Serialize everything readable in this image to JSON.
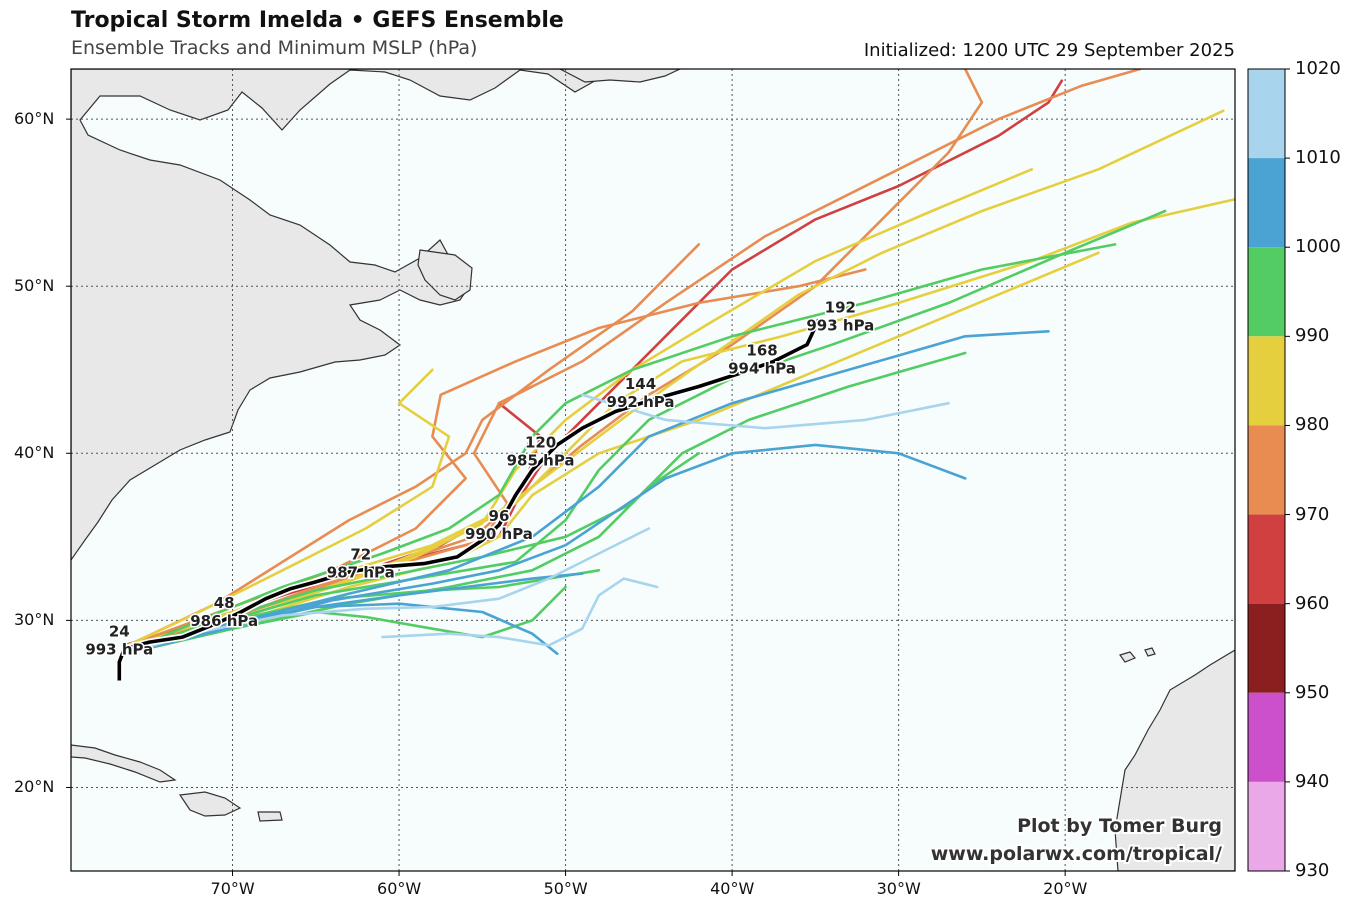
{
  "header": {
    "title": "Tropical Storm Imelda • GEFS Ensemble",
    "subtitle": "Ensemble Tracks and Minimum MSLP (hPa)",
    "initialized": "Initialized: 1200 UTC 29 September 2025"
  },
  "map": {
    "lon_range": [
      -79.7,
      -9.8
    ],
    "lat_range": [
      15.0,
      63.0
    ],
    "lon_ticks": [
      {
        "lon": -70,
        "label": "70°W"
      },
      {
        "lon": -60,
        "label": "60°W"
      },
      {
        "lon": -50,
        "label": "50°W"
      },
      {
        "lon": -40,
        "label": "40°W"
      },
      {
        "lon": -30,
        "label": "30°W"
      },
      {
        "lon": -20,
        "label": "20°W"
      }
    ],
    "lat_ticks": [
      {
        "lat": 60,
        "label": "60°N"
      },
      {
        "lat": 50,
        "label": "50°N"
      },
      {
        "lat": 40,
        "label": "40°N"
      },
      {
        "lat": 30,
        "label": "30°N"
      },
      {
        "lat": 20,
        "label": "20°N"
      }
    ],
    "gridlines": true,
    "ocean_color": "#f7fdfd",
    "land_color": "#e8e8e8"
  },
  "colorbar": {
    "levels": [
      "1020",
      "1010",
      "1000",
      "990",
      "980",
      "970",
      "960",
      "950",
      "940",
      "930"
    ],
    "colors": [
      "#a8d4ee",
      "#4aa3d2",
      "#53cc63",
      "#e6cf3e",
      "#e88c52",
      "#d04040",
      "#8b1e1e",
      "#cc4fcc",
      "#eaa8e8"
    ]
  },
  "mean_track": {
    "points": [
      [
        -76.8,
        26.4
      ],
      [
        -76.8,
        27.5
      ],
      [
        -76.5,
        28.3
      ],
      [
        -75.0,
        28.7
      ],
      [
        -73.0,
        29.0
      ],
      [
        -71.0,
        29.8
      ],
      [
        -69.5,
        30.5
      ],
      [
        -68.0,
        31.3
      ],
      [
        -66.5,
        31.9
      ],
      [
        -65.0,
        32.3
      ],
      [
        -63.0,
        32.9
      ],
      [
        -61.0,
        33.2
      ],
      [
        -58.5,
        33.4
      ],
      [
        -56.5,
        33.8
      ],
      [
        -55.0,
        34.8
      ],
      [
        -54.0,
        35.7
      ],
      [
        -53.0,
        37.5
      ],
      [
        -52.0,
        39.0
      ],
      [
        -50.5,
        40.5
      ],
      [
        -49.0,
        41.5
      ],
      [
        -47.0,
        42.5
      ],
      [
        -44.5,
        43.3
      ],
      [
        -42.0,
        44.0
      ],
      [
        -39.5,
        44.8
      ],
      [
        -37.5,
        45.5
      ],
      [
        -35.5,
        46.5
      ],
      [
        -34.8,
        48.0
      ]
    ],
    "labels": [
      {
        "lon": -76.8,
        "lat": 28.8,
        "hour": "24",
        "mslp": "993 hPa"
      },
      {
        "lon": -70.5,
        "lat": 30.5,
        "hour": "48",
        "mslp": "986 hPa"
      },
      {
        "lon": -62.3,
        "lat": 33.4,
        "hour": "72",
        "mslp": "987 hPa"
      },
      {
        "lon": -54.0,
        "lat": 35.7,
        "hour": "96",
        "mslp": "990 hPa"
      },
      {
        "lon": -51.5,
        "lat": 40.1,
        "hour": "120",
        "mslp": "985 hPa"
      },
      {
        "lon": -45.5,
        "lat": 43.6,
        "hour": "144",
        "mslp": "992 hPa"
      },
      {
        "lon": -38.2,
        "lat": 45.6,
        "hour": "168",
        "mslp": "994 hPa"
      },
      {
        "lon": -33.5,
        "lat": 48.2,
        "hour": "192",
        "mslp": "993 hPa"
      }
    ]
  },
  "ensemble_tracks": [
    {
      "color": "#d04040",
      "points": [
        [
          -76.5,
          28.5
        ],
        [
          -72,
          29.8
        ],
        [
          -67,
          31.5
        ],
        [
          -62,
          33
        ],
        [
          -57.5,
          34.5
        ],
        [
          -53,
          37
        ],
        [
          -51,
          40
        ],
        [
          -48,
          43
        ],
        [
          -44,
          47
        ],
        [
          -40,
          51
        ],
        [
          -35,
          54
        ],
        [
          -30,
          56
        ],
        [
          -24,
          59
        ],
        [
          -21,
          61
        ],
        [
          -20.2,
          62.3
        ]
      ]
    },
    {
      "color": "#d04040",
      "points": [
        [
          -76.5,
          28.5
        ],
        [
          -70,
          30.5
        ],
        [
          -64,
          32.5
        ],
        [
          -58,
          34
        ],
        [
          -54,
          35
        ],
        [
          -52.5,
          38
        ],
        [
          -51.5,
          41
        ],
        [
          -54,
          43
        ],
        [
          -52,
          44
        ]
      ]
    },
    {
      "color": "#e88c52",
      "points": [
        [
          -76.5,
          28.3
        ],
        [
          -70,
          30.2
        ],
        [
          -62,
          32.8
        ],
        [
          -55,
          34.8
        ],
        [
          -53.5,
          37
        ],
        [
          -55.5,
          40
        ],
        [
          -54,
          43
        ],
        [
          -49,
          45.5
        ],
        [
          -44,
          49
        ],
        [
          -38,
          53
        ],
        [
          -30,
          57
        ],
        [
          -24,
          60
        ],
        [
          -19,
          62
        ],
        [
          -15.5,
          63
        ]
      ]
    },
    {
      "color": "#e88c52",
      "points": [
        [
          -76.5,
          28.3
        ],
        [
          -71,
          29.8
        ],
        [
          -65,
          32
        ],
        [
          -60,
          33.5
        ],
        [
          -55.5,
          35
        ],
        [
          -52,
          38
        ],
        [
          -49,
          40.5
        ],
        [
          -45,
          43.5
        ],
        [
          -40,
          46.5
        ],
        [
          -35,
          50
        ],
        [
          -31,
          54
        ],
        [
          -27,
          58
        ],
        [
          -25,
          61
        ],
        [
          -26,
          63
        ]
      ]
    },
    {
      "color": "#e88c52",
      "points": [
        [
          -76.5,
          28.4
        ],
        [
          -70,
          30.8
        ],
        [
          -64,
          33
        ],
        [
          -59,
          35.5
        ],
        [
          -56,
          38.5
        ],
        [
          -58,
          41
        ],
        [
          -57.5,
          43.5
        ],
        [
          -53,
          45.5
        ],
        [
          -48,
          47.5
        ],
        [
          -42,
          49
        ],
        [
          -36,
          50
        ],
        [
          -32,
          51
        ]
      ]
    },
    {
      "color": "#e88c52",
      "points": [
        [
          -76.5,
          28.4
        ],
        [
          -71,
          31
        ],
        [
          -67,
          33.5
        ],
        [
          -63,
          36
        ],
        [
          -59,
          38
        ],
        [
          -56,
          40
        ],
        [
          -55,
          42
        ],
        [
          -51,
          45
        ],
        [
          -46,
          48.5
        ],
        [
          -42,
          52.5
        ]
      ]
    },
    {
      "color": "#e6cf3e",
      "points": [
        [
          -76.5,
          28.3
        ],
        [
          -70,
          30.5
        ],
        [
          -64,
          32.7
        ],
        [
          -58,
          34.5
        ],
        [
          -54,
          36.5
        ],
        [
          -50,
          39.5
        ],
        [
          -46,
          42.5
        ],
        [
          -41,
          46
        ],
        [
          -36,
          49.5
        ],
        [
          -31,
          52
        ],
        [
          -25,
          54.5
        ],
        [
          -18,
          57
        ],
        [
          -10.5,
          60.5
        ]
      ]
    },
    {
      "color": "#e6cf3e",
      "points": [
        [
          -76.5,
          28.2
        ],
        [
          -69,
          30.3
        ],
        [
          -62,
          32.8
        ],
        [
          -57,
          34.8
        ],
        [
          -53,
          37
        ],
        [
          -50,
          40
        ],
        [
          -47,
          43
        ],
        [
          -43,
          45.5
        ],
        [
          -37,
          47
        ],
        [
          -30,
          49
        ],
        [
          -22,
          51.5
        ],
        [
          -16,
          53.8
        ],
        [
          -9.8,
          55.2
        ]
      ]
    },
    {
      "color": "#e6cf3e",
      "points": [
        [
          -76.5,
          28.3
        ],
        [
          -70,
          30
        ],
        [
          -64,
          32
        ],
        [
          -59,
          33.8
        ],
        [
          -55,
          35.8
        ],
        [
          -53,
          39
        ],
        [
          -50,
          42
        ],
        [
          -46,
          45
        ],
        [
          -41,
          48
        ],
        [
          -35,
          51.5
        ],
        [
          -28,
          54.5
        ],
        [
          -22,
          57
        ]
      ]
    },
    {
      "color": "#e6cf3e",
      "points": [
        [
          -76.5,
          28.2
        ],
        [
          -70,
          29.8
        ],
        [
          -63,
          32
        ],
        [
          -57,
          33.5
        ],
        [
          -54,
          35
        ],
        [
          -52,
          37.5
        ],
        [
          -48,
          40
        ],
        [
          -42,
          42
        ],
        [
          -36,
          44.5
        ],
        [
          -30,
          47
        ],
        [
          -24,
          49.5
        ],
        [
          -18,
          52
        ]
      ]
    },
    {
      "color": "#e6cf3e",
      "points": [
        [
          -76.5,
          28.4
        ],
        [
          -72,
          30.5
        ],
        [
          -67,
          33
        ],
        [
          -62,
          35.5
        ],
        [
          -58,
          38
        ],
        [
          -57,
          41
        ],
        [
          -60,
          43
        ],
        [
          -58,
          45
        ]
      ]
    },
    {
      "color": "#53cc63",
      "points": [
        [
          -76.5,
          28.0
        ],
        [
          -71,
          29.8
        ],
        [
          -65,
          31.5
        ],
        [
          -59,
          32.5
        ],
        [
          -53,
          33.5
        ],
        [
          -50,
          36
        ],
        [
          -48,
          39
        ],
        [
          -45,
          42
        ],
        [
          -40,
          44.5
        ],
        [
          -34,
          46.5
        ],
        [
          -27,
          49
        ],
        [
          -20,
          52
        ],
        [
          -14,
          54.5
        ]
      ]
    },
    {
      "color": "#53cc63",
      "points": [
        [
          -76.5,
          28.0
        ],
        [
          -70,
          29.5
        ],
        [
          -63,
          31
        ],
        [
          -57,
          32
        ],
        [
          -52,
          33
        ],
        [
          -48,
          35
        ],
        [
          -45,
          38
        ],
        [
          -42,
          40
        ]
      ]
    },
    {
      "color": "#53cc63",
      "points": [
        [
          -76.5,
          28.0
        ],
        [
          -71,
          30
        ],
        [
          -65,
          31.8
        ],
        [
          -60,
          32.8
        ],
        [
          -55,
          33.8
        ],
        [
          -50,
          35
        ],
        [
          -46,
          37
        ],
        [
          -43,
          40
        ],
        [
          -39,
          42
        ],
        [
          -33,
          44
        ],
        [
          -26,
          46
        ]
      ]
    },
    {
      "color": "#53cc63",
      "points": [
        [
          -76.5,
          28.0
        ],
        [
          -70,
          30
        ],
        [
          -64,
          31.3
        ],
        [
          -58,
          31.8
        ],
        [
          -54,
          32
        ],
        [
          -51,
          32.5
        ],
        [
          -48,
          33
        ]
      ]
    },
    {
      "color": "#53cc63",
      "points": [
        [
          -76.5,
          28.0
        ],
        [
          -70,
          29.5
        ],
        [
          -65,
          30.5
        ],
        [
          -62,
          30.2
        ],
        [
          -58,
          29.5
        ],
        [
          -55,
          29
        ],
        [
          -52,
          30
        ],
        [
          -50,
          32
        ]
      ]
    },
    {
      "color": "#53cc63",
      "points": [
        [
          -76.5,
          28.0
        ],
        [
          -72,
          30
        ],
        [
          -67,
          32
        ],
        [
          -61,
          34
        ],
        [
          -57,
          35.5
        ],
        [
          -54,
          37.5
        ],
        [
          -52,
          41
        ],
        [
          -50,
          43
        ],
        [
          -46,
          45
        ],
        [
          -40,
          47
        ],
        [
          -32,
          49
        ],
        [
          -25,
          51
        ],
        [
          -17,
          52.5
        ]
      ]
    },
    {
      "color": "#4aa3d2",
      "points": [
        [
          -76.5,
          28.0
        ],
        [
          -70,
          29.6
        ],
        [
          -64,
          31.2
        ],
        [
          -58,
          32.2
        ],
        [
          -54,
          33
        ],
        [
          -50,
          34.5
        ],
        [
          -47,
          36.5
        ],
        [
          -44,
          38.5
        ],
        [
          -40,
          40
        ],
        [
          -35,
          40.5
        ],
        [
          -30,
          40
        ],
        [
          -26,
          38.5
        ]
      ]
    },
    {
      "color": "#4aa3d2",
      "points": [
        [
          -76.5,
          28.0
        ],
        [
          -71,
          29.5
        ],
        [
          -65,
          30.8
        ],
        [
          -60,
          31.5
        ],
        [
          -56,
          32
        ],
        [
          -52,
          32.5
        ],
        [
          -49,
          32.8
        ]
      ]
    },
    {
      "color": "#4aa3d2",
      "points": [
        [
          -76.5,
          28.0
        ],
        [
          -70,
          29.8
        ],
        [
          -63,
          31.6
        ],
        [
          -57,
          33
        ],
        [
          -52,
          35
        ],
        [
          -48,
          38
        ],
        [
          -45,
          41
        ],
        [
          -40,
          43
        ],
        [
          -33,
          45
        ],
        [
          -26,
          47
        ],
        [
          -21,
          47.3
        ]
      ]
    },
    {
      "color": "#4aa3d2",
      "points": [
        [
          -76.5,
          28.0
        ],
        [
          -71,
          29.7
        ],
        [
          -65,
          30.8
        ],
        [
          -60,
          31
        ],
        [
          -55,
          30.5
        ],
        [
          -52,
          29.2
        ],
        [
          -50.5,
          28
        ]
      ]
    },
    {
      "color": "#a8d4ee",
      "points": [
        [
          -76.5,
          28.0
        ],
        [
          -72,
          29.3
        ],
        [
          -67,
          30.3
        ],
        [
          -62,
          30.7
        ],
        [
          -58,
          30.8
        ],
        [
          -54,
          31.3
        ],
        [
          -51,
          32.5
        ],
        [
          -48,
          34
        ],
        [
          -45,
          35.5
        ]
      ]
    },
    {
      "color": "#a8d4ee",
      "points": [
        [
          -61,
          29
        ],
        [
          -57,
          29.2
        ],
        [
          -54,
          29
        ],
        [
          -51,
          28.5
        ],
        [
          -49,
          29.5
        ],
        [
          -48,
          31.5
        ],
        [
          -46.5,
          32.5
        ],
        [
          -44.5,
          32
        ]
      ]
    },
    {
      "color": "#a8d4ee",
      "points": [
        [
          -49,
          43.5
        ],
        [
          -44,
          42
        ],
        [
          -38,
          41.5
        ],
        [
          -32,
          42
        ],
        [
          -27,
          43
        ]
      ]
    }
  ],
  "credit": {
    "line1": "Plot by Tomer Burg",
    "line2": "www.polarwx.com/tropical/"
  }
}
